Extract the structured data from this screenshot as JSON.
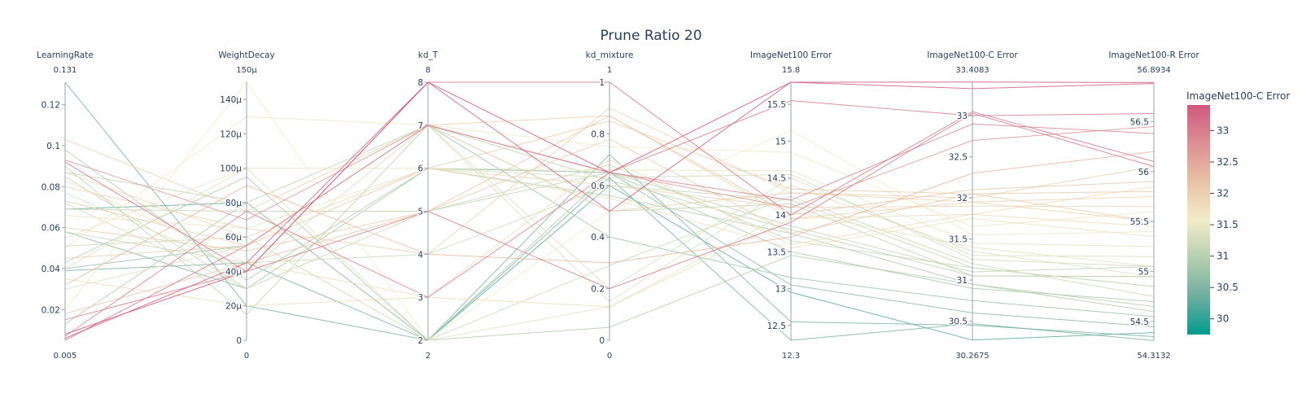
{
  "chart_data": {
    "type": "parallel_coordinates",
    "title": "Prune Ratio 20",
    "axes": [
      {
        "label": "LearningRate",
        "min": 0.005,
        "max": 0.131,
        "min_label": "0.005",
        "max_label": "0.131",
        "ticks": [
          0.02,
          0.04,
          0.06,
          0.08,
          0.1,
          0.12
        ],
        "tick_labels": [
          "0.02",
          "0.04",
          "0.06",
          "0.08",
          "0.1",
          "0.12"
        ]
      },
      {
        "label": "WeightDecay",
        "min": 0,
        "max": 150,
        "min_label": "0",
        "max_label": "150μ",
        "ticks": [
          0,
          20,
          40,
          60,
          80,
          100,
          120,
          140
        ],
        "tick_labels": [
          "0",
          "20μ",
          "40μ",
          "60μ",
          "80μ",
          "100μ",
          "120μ",
          "140μ"
        ]
      },
      {
        "label": "kd_T",
        "min": 2,
        "max": 8,
        "min_label": "2",
        "max_label": "8",
        "ticks": [
          2,
          3,
          4,
          5,
          6,
          7,
          8
        ],
        "tick_labels": [
          "2",
          "3",
          "4",
          "5",
          "6",
          "7",
          "8"
        ]
      },
      {
        "label": "kd_mixture",
        "min": 0,
        "max": 1,
        "min_label": "0",
        "max_label": "1",
        "ticks": [
          0,
          0.2,
          0.4,
          0.6,
          0.8,
          1
        ],
        "tick_labels": [
          "0",
          "0.2",
          "0.4",
          "0.6",
          "0.8",
          "1"
        ]
      },
      {
        "label": "ImageNet100 Error",
        "min": 12.3,
        "max": 15.8,
        "min_label": "12.3",
        "max_label": "15.8",
        "ticks": [
          12.5,
          13,
          13.5,
          14,
          14.5,
          15,
          15.5
        ],
        "tick_labels": [
          "12.5",
          "13",
          "13.5",
          "14",
          "14.5",
          "15",
          "15.5"
        ]
      },
      {
        "label": "ImageNet100-C Error",
        "min": 30.2675,
        "max": 33.4083,
        "min_label": "30.2675",
        "max_label": "33.4083",
        "ticks": [
          30.5,
          31,
          31.5,
          32,
          32.5,
          33
        ],
        "tick_labels": [
          "30.5",
          "31",
          "31.5",
          "32",
          "32.5",
          "33"
        ]
      },
      {
        "label": "ImageNet100-R Error",
        "min": 54.3132,
        "max": 56.8934,
        "min_label": "54.3132",
        "max_label": "56.8934",
        "ticks": [
          54.5,
          55,
          55.5,
          56,
          56.5
        ],
        "tick_labels": [
          "54.5",
          "55",
          "55.5",
          "56",
          "56.5"
        ]
      }
    ],
    "colorbar": {
      "title": "ImageNet100-C Error",
      "min": 29.75,
      "max": 33.4083,
      "ticks": [
        30,
        30.5,
        31,
        31.5,
        32,
        32.5,
        33
      ],
      "tick_labels": [
        "30",
        "30.5",
        "31",
        "31.5",
        "32",
        "32.5",
        "33"
      ],
      "colorscale": [
        "#009b8f",
        "#6fae9f",
        "#b6cfb0",
        "#f2ecc9",
        "#e9c2a6",
        "#dc8e94",
        "#cf597e"
      ]
    },
    "lines": [
      [
        0.006,
        45,
        8,
        0.5,
        15.8,
        33.33,
        56.88
      ],
      [
        0.008,
        40,
        8,
        0.65,
        15.8,
        33.41,
        56.89
      ],
      [
        0.092,
        40,
        8,
        1.0,
        14.0,
        33.05,
        56.1
      ],
      [
        0.005,
        55,
        7,
        0.65,
        15.55,
        33.0,
        56.58
      ],
      [
        0.015,
        40,
        5,
        0.2,
        13.9,
        33.03,
        56.05
      ],
      [
        0.007,
        75,
        3,
        0.65,
        14.2,
        32.9,
        56.38
      ],
      [
        0.093,
        70,
        7,
        0.65,
        14.1,
        32.7,
        56.45
      ],
      [
        0.032,
        90,
        4,
        0.3,
        13.7,
        32.3,
        56.2
      ],
      [
        0.018,
        45,
        5,
        0.87,
        14.0,
        32.1,
        55.9
      ],
      [
        0.045,
        55,
        7,
        0.5,
        14.3,
        32.0,
        56.05
      ],
      [
        0.073,
        55,
        6,
        0.85,
        14.35,
        32.05,
        55.8
      ],
      [
        0.08,
        65,
        4,
        0.9,
        14.3,
        31.95,
        55.75
      ],
      [
        0.087,
        60,
        6,
        0.6,
        14.1,
        31.9,
        55.65
      ],
      [
        0.083,
        45,
        3,
        0.7,
        13.6,
        31.8,
        55.85
      ],
      [
        0.103,
        75,
        7,
        0.87,
        13.95,
        31.95,
        55.5
      ],
      [
        0.06,
        52,
        5,
        0.78,
        13.75,
        32.05,
        55.5
      ],
      [
        0.055,
        100,
        6,
        0.55,
        13.55,
        31.75,
        55.35
      ],
      [
        0.035,
        20,
        3,
        0.13,
        13.95,
        31.8,
        55.45
      ],
      [
        0.05,
        130,
        7,
        0.75,
        14.85,
        31.65,
        55.6
      ],
      [
        0.02,
        150,
        2,
        0.5,
        15.15,
        31.55,
        55.4
      ],
      [
        0.066,
        65,
        6,
        0.66,
        14.6,
        31.45,
        55.25
      ],
      [
        0.04,
        100,
        2,
        0.13,
        14.05,
        31.4,
        55.05
      ],
      [
        0.03,
        55,
        7,
        0.15,
        14.4,
        31.35,
        54.95
      ],
      [
        0.077,
        40,
        7,
        0.2,
        14.5,
        31.3,
        55.15
      ],
      [
        0.072,
        30,
        6,
        0.63,
        14.55,
        31.25,
        55.05
      ],
      [
        0.058,
        45,
        4,
        0.6,
        14.2,
        31.15,
        54.85
      ],
      [
        0.069,
        75,
        5,
        0.65,
        13.85,
        31.1,
        55.05
      ],
      [
        0.09,
        15,
        7,
        0.5,
        14.15,
        31.05,
        54.95
      ],
      [
        0.051,
        60,
        2,
        0.29,
        14.25,
        31.2,
        54.75
      ],
      [
        0.085,
        30,
        5,
        0.68,
        13.65,
        31.15,
        54.85
      ],
      [
        0.087,
        80,
        7,
        0.62,
        13.8,
        31.05,
        54.95
      ],
      [
        0.098,
        35,
        6,
        0.56,
        13.75,
        30.95,
        54.65
      ],
      [
        0.043,
        95,
        2,
        0.65,
        13.5,
        30.9,
        54.7
      ],
      [
        0.04,
        55,
        7,
        0.4,
        13.15,
        30.75,
        54.55
      ],
      [
        0.058,
        30,
        6,
        0.65,
        13.05,
        30.6,
        54.45
      ],
      [
        0.013,
        80,
        2,
        0.05,
        13.45,
        30.95,
        54.6
      ],
      [
        0.131,
        20,
        2,
        0.72,
        12.55,
        30.45,
        54.35
      ],
      [
        0.069,
        80,
        2,
        0.6,
        12.95,
        30.27,
        54.39
      ],
      [
        0.039,
        45,
        2,
        0.63,
        12.3,
        30.47,
        54.31
      ]
    ]
  }
}
